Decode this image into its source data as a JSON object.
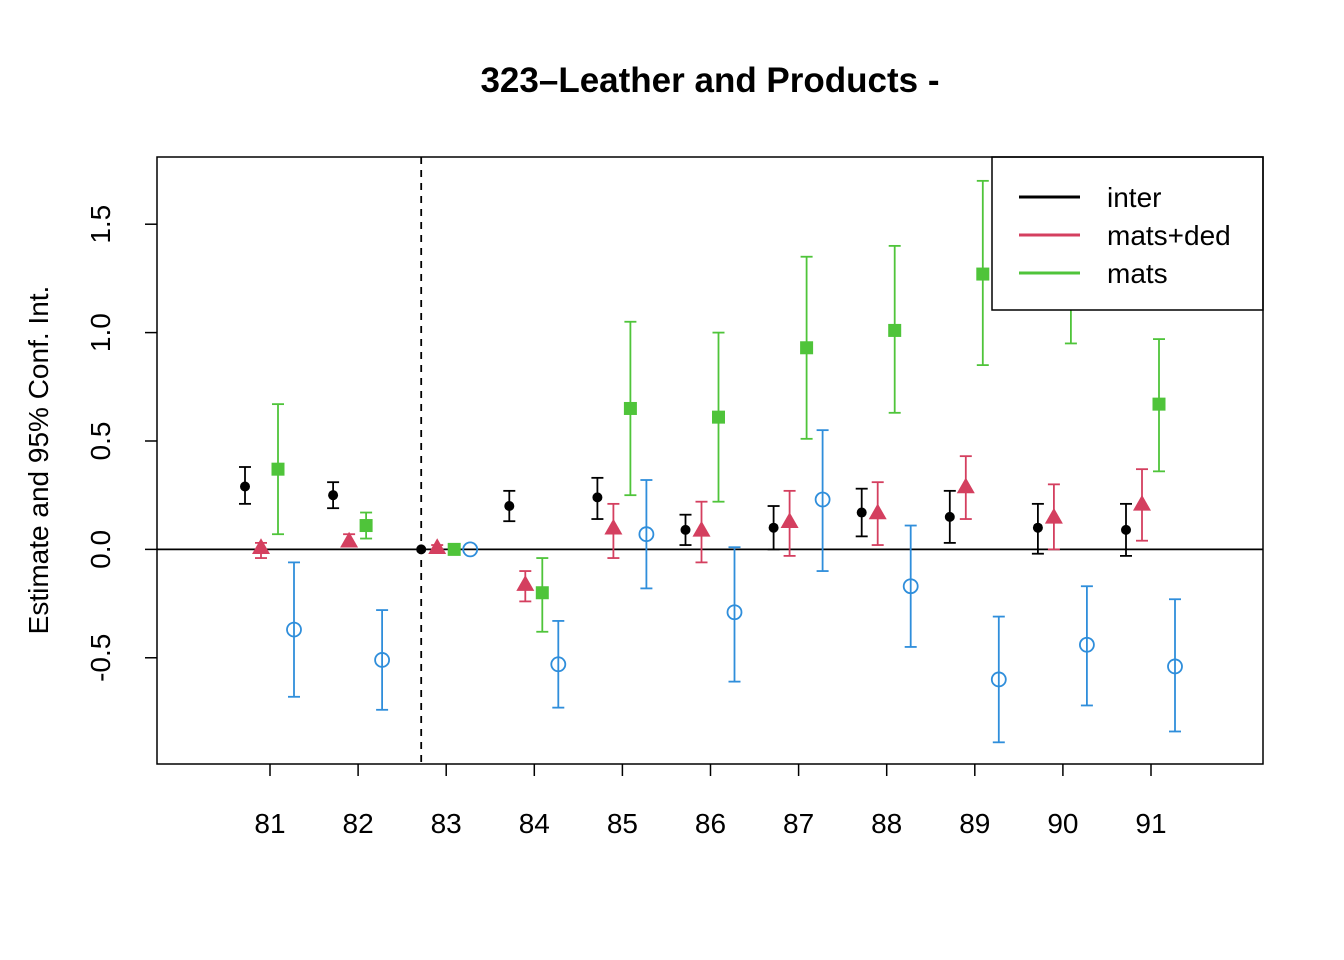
{
  "chart_data": {
    "type": "scatter",
    "title": "323–Leather and Products -",
    "xlabel": "",
    "ylabel": "Estimate and 95% Conf. Int.",
    "categories": [
      "81",
      "82",
      "83",
      "84",
      "85",
      "86",
      "87",
      "88",
      "89",
      "90",
      "91"
    ],
    "ylim": [
      -0.99,
      1.81
    ],
    "yticks": [
      -0.5,
      0.0,
      0.5,
      1.0,
      1.5
    ],
    "ytick_labels": [
      "-0.5",
      "0.0",
      "0.5",
      "1.0",
      "1.5"
    ],
    "reference_line_y": 0,
    "reference_line_category": "83",
    "legend_position": "top-right",
    "series": [
      {
        "name": "inter",
        "color": "#000000",
        "marker": "filled-circle",
        "estimate": [
          0.29,
          0.25,
          0.0,
          0.2,
          0.24,
          0.09,
          0.1,
          0.17,
          0.15,
          0.1,
          0.09
        ],
        "lower": [
          0.21,
          0.19,
          0.0,
          0.13,
          0.14,
          0.02,
          0.0,
          0.06,
          0.03,
          -0.02,
          -0.03
        ],
        "upper": [
          0.38,
          0.31,
          0.0,
          0.27,
          0.33,
          0.16,
          0.2,
          0.28,
          0.27,
          0.21,
          0.21
        ]
      },
      {
        "name": "mats+ded",
        "color": "#d43f5f",
        "marker": "filled-triangle",
        "estimate": [
          0.01,
          0.04,
          0.01,
          -0.16,
          0.1,
          0.09,
          0.13,
          0.17,
          0.29,
          0.15,
          0.21
        ],
        "lower": [
          -0.04,
          0.02,
          0.0,
          -0.24,
          -0.04,
          -0.06,
          -0.03,
          0.02,
          0.14,
          0.0,
          0.04
        ],
        "upper": [
          0.03,
          0.07,
          0.02,
          -0.1,
          0.21,
          0.22,
          0.27,
          0.31,
          0.43,
          0.3,
          0.37
        ]
      },
      {
        "name": "mats",
        "color": "#4fc43a",
        "marker": "filled-square",
        "estimate": [
          0.37,
          0.11,
          0.0,
          -0.2,
          0.65,
          0.61,
          0.93,
          1.01,
          1.27,
          1.21,
          0.67
        ],
        "lower": [
          0.07,
          0.05,
          0.0,
          -0.38,
          0.25,
          0.22,
          0.51,
          0.63,
          0.85,
          0.95,
          0.36
        ],
        "upper": [
          0.67,
          0.17,
          0.0,
          -0.04,
          1.05,
          1.0,
          1.35,
          1.4,
          1.7,
          1.45,
          0.97
        ]
      },
      {
        "name": "",
        "color": "#2f8edb",
        "marker": "open-circle",
        "estimate": [
          -0.37,
          -0.51,
          0.0,
          -0.53,
          0.07,
          -0.29,
          0.23,
          -0.17,
          -0.6,
          -0.44,
          -0.54
        ],
        "lower": [
          -0.68,
          -0.74,
          0.0,
          -0.73,
          -0.18,
          -0.61,
          -0.1,
          -0.45,
          -0.89,
          -0.72,
          -0.84
        ],
        "upper": [
          -0.06,
          -0.28,
          0.0,
          -0.33,
          0.32,
          0.01,
          0.55,
          0.11,
          -0.31,
          -0.17,
          -0.23
        ]
      }
    ],
    "legend_entries": [
      "inter",
      "mats+ded",
      "mats"
    ]
  }
}
